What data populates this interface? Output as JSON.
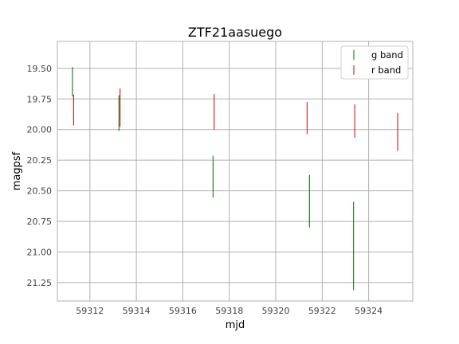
{
  "chart_data": {
    "type": "scatter",
    "title": "ZTF21aasuego",
    "xlabel": "mjd",
    "ylabel": "magpsf",
    "xlim": [
      59310.6,
      59325.9
    ],
    "ylim": [
      21.4,
      19.28
    ],
    "y_inverted": true,
    "grid": true,
    "legend_position": "top-right",
    "xticks": [
      59312,
      59314,
      59316,
      59318,
      59320,
      59322,
      59324
    ],
    "yticks": [
      19.5,
      19.75,
      20.0,
      20.25,
      20.5,
      20.75,
      21.0,
      21.25
    ],
    "series": [
      {
        "name": "g band",
        "color": "#006400",
        "points": [
          {
            "x": 59311.25,
            "y": 19.61,
            "err": 0.12
          },
          {
            "x": 59313.25,
            "y": 19.865,
            "err": 0.145
          },
          {
            "x": 59317.3,
            "y": 20.385,
            "err": 0.17
          },
          {
            "x": 59321.45,
            "y": 20.585,
            "err": 0.215
          },
          {
            "x": 59323.35,
            "y": 20.95,
            "err": 0.36
          }
        ]
      },
      {
        "name": "r band",
        "color": "#cc0000",
        "points": [
          {
            "x": 59311.3,
            "y": 19.84,
            "err": 0.125
          },
          {
            "x": 59313.3,
            "y": 19.82,
            "err": 0.155
          },
          {
            "x": 59317.35,
            "y": 19.855,
            "err": 0.145
          },
          {
            "x": 59321.35,
            "y": 19.905,
            "err": 0.13
          },
          {
            "x": 59323.4,
            "y": 19.93,
            "err": 0.135
          },
          {
            "x": 59325.25,
            "y": 20.02,
            "err": 0.155
          }
        ]
      }
    ]
  }
}
